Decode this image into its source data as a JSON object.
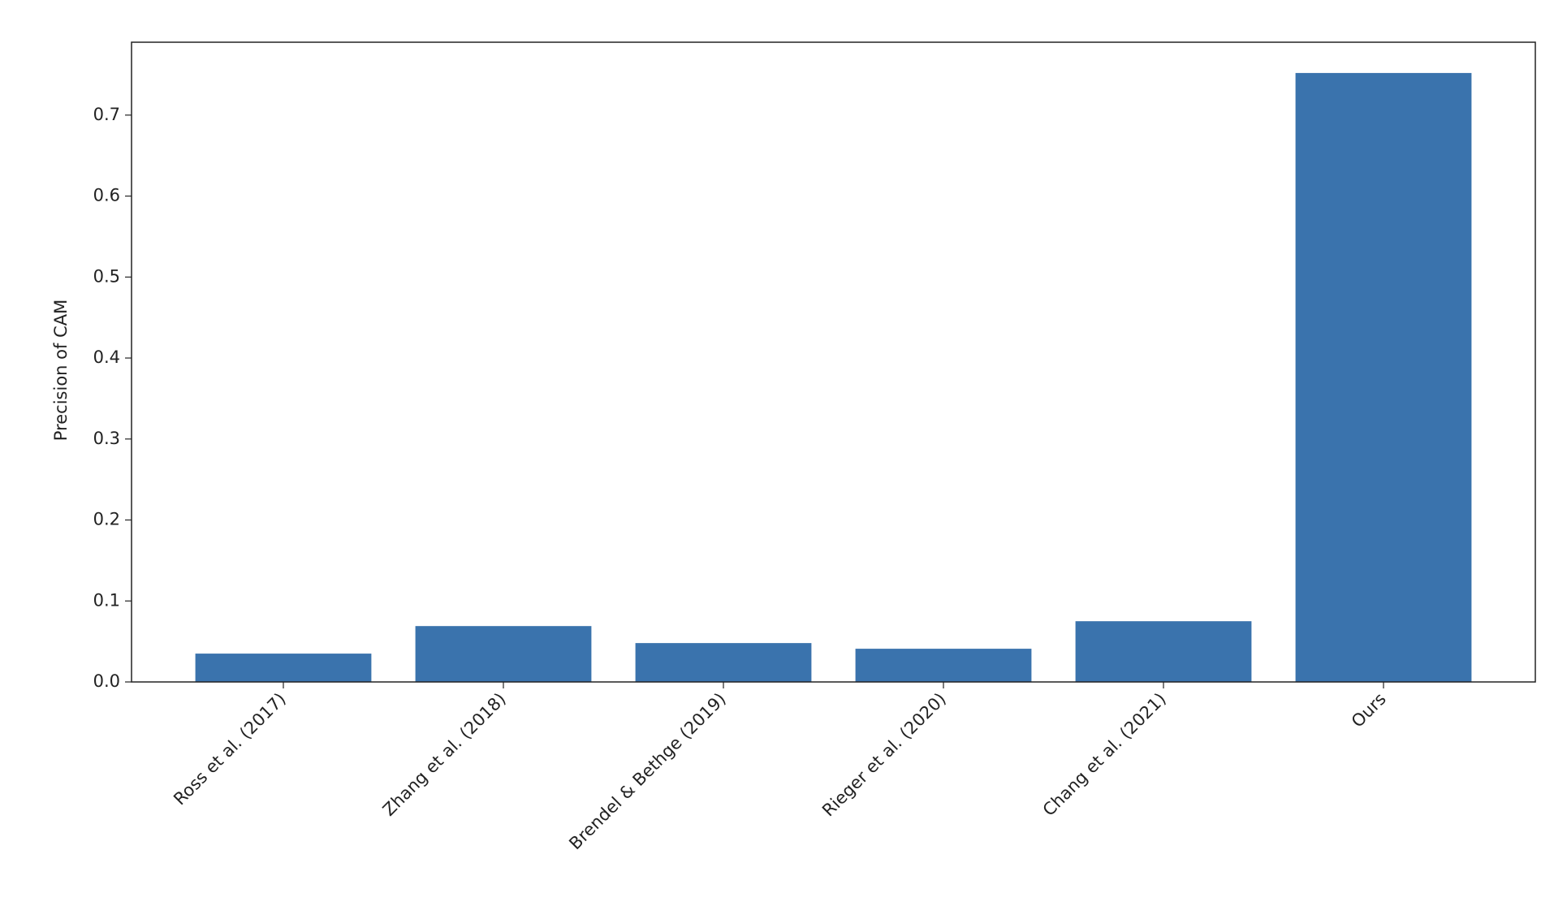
{
  "chart_data": {
    "type": "bar",
    "y_label": "Precision of CAM",
    "categories": [
      "Ross et al. (2017)",
      "Zhang et al. (2018)",
      "Brendel & Bethge (2019)",
      "Rieger et al. (2020)",
      "Chang et al. (2021)",
      "Ours"
    ],
    "values": [
      0.035,
      0.069,
      0.048,
      0.041,
      0.075,
      0.752
    ],
    "color": "#3a73ad",
    "ylim": [
      0,
      0.79
    ],
    "yticks": [
      {
        "value": 0,
        "label": "0.0"
      },
      0.1,
      0.2,
      0.3,
      0.4,
      0.5,
      0.6,
      0.7
    ],
    "grid": false
  }
}
